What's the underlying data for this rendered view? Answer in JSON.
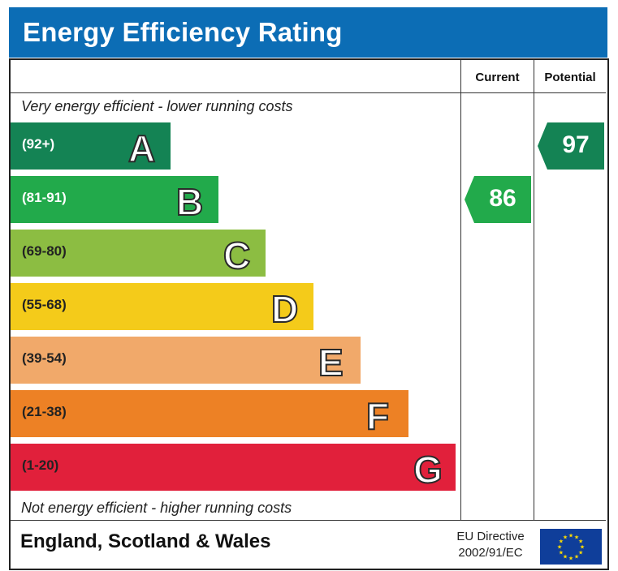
{
  "title": "Energy Efficiency Rating",
  "columns": {
    "current": "Current",
    "potential": "Potential"
  },
  "captions": {
    "top": "Very energy efficient - lower running costs",
    "bottom": "Not energy efficient - higher running costs"
  },
  "chart_data": {
    "type": "bar",
    "title": "Energy Efficiency Rating",
    "categories": [
      "A",
      "B",
      "C",
      "D",
      "E",
      "F",
      "G"
    ],
    "bands": [
      {
        "letter": "A",
        "range": "(92+)",
        "min": 92,
        "max": 100,
        "color": "#148354",
        "text_color": "#ffffff"
      },
      {
        "letter": "B",
        "range": "(81-91)",
        "min": 81,
        "max": 91,
        "color": "#22aa4b",
        "text_color": "#ffffff"
      },
      {
        "letter": "C",
        "range": "(69-80)",
        "min": 69,
        "max": 80,
        "color": "#8cbd42",
        "text_color": "#222222"
      },
      {
        "letter": "D",
        "range": "(55-68)",
        "min": 55,
        "max": 68,
        "color": "#f4cb1a",
        "text_color": "#222222"
      },
      {
        "letter": "E",
        "range": "(39-54)",
        "min": 39,
        "max": 54,
        "color": "#f1a96a",
        "text_color": "#222222"
      },
      {
        "letter": "F",
        "range": "(21-38)",
        "min": 21,
        "max": 38,
        "color": "#ed8125",
        "text_color": "#222222"
      },
      {
        "letter": "G",
        "range": "(1-20)",
        "min": 1,
        "max": 20,
        "color": "#e1203b",
        "text_color": "#222222"
      }
    ],
    "current": {
      "value": 86,
      "band": "B",
      "color": "#22aa4b"
    },
    "potential": {
      "value": 97,
      "band": "A",
      "color": "#148354"
    }
  },
  "footer": {
    "country": "England, Scotland & Wales",
    "directive_line1": "EU Directive",
    "directive_line2": "2002/91/EC"
  },
  "colors": {
    "title_bar": "#0c6db5",
    "eu_flag_blue": "#0f3e9a",
    "eu_flag_star": "#ffdd00"
  }
}
